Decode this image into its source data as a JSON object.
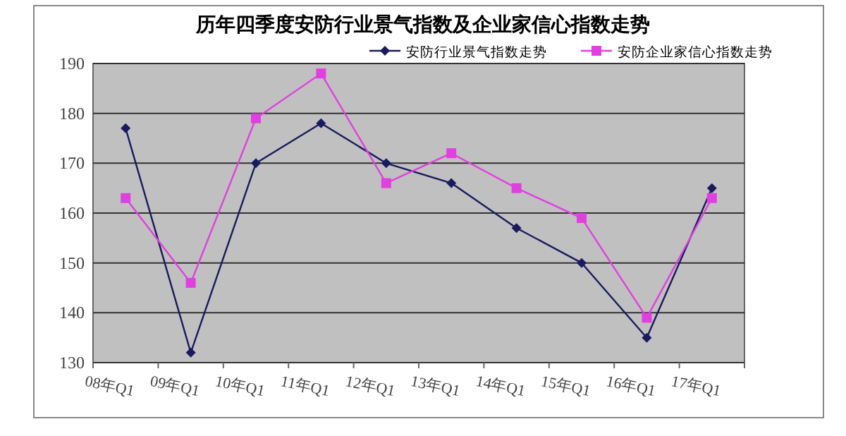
{
  "chart_data": {
    "type": "line",
    "title": "历年四季度安防行业景气指数及企业家信心指数走势",
    "categories": [
      "08年Q1",
      "09年Q1",
      "10年Q1",
      "11年Q1",
      "12年Q1",
      "13年Q1",
      "14年Q1",
      "15年Q1",
      "16年Q1",
      "17年Q1"
    ],
    "series": [
      {
        "name": "安防行业景气指数走势",
        "color": "#1a1a5e",
        "marker": "diamond",
        "values": [
          177,
          132,
          170,
          178,
          170,
          166,
          157,
          150,
          135,
          165
        ]
      },
      {
        "name": "安防企业家信心指数走势",
        "color": "#e040e0",
        "marker": "square",
        "values": [
          163,
          146,
          179,
          188,
          166,
          172,
          165,
          159,
          139,
          163
        ]
      }
    ],
    "ylim": [
      130,
      190
    ],
    "yticks": [
      130,
      140,
      150,
      160,
      170,
      180,
      190
    ],
    "grid": "y",
    "legend": "top right"
  }
}
